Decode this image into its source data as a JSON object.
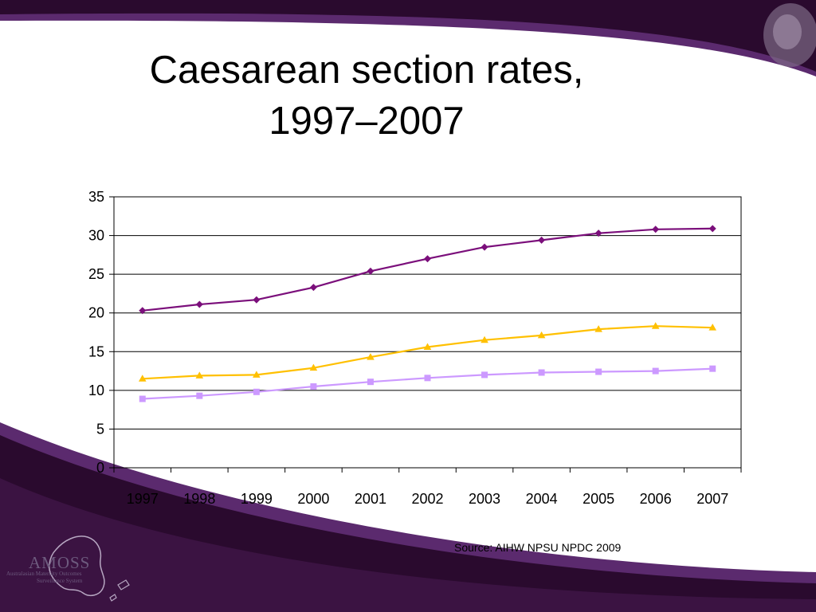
{
  "slide": {
    "title_line1": "Caesarean section rates,",
    "title_line2": "1997–2007",
    "source": "Source: AIHW NPSU NPDC 2009",
    "logo": {
      "name": "AMOSS",
      "subtitle_line1": "Australasian Maternity Outcomes",
      "subtitle_line2": "Surveillance System"
    },
    "colors": {
      "deco_dark": "#2a0a2e",
      "deco_purple": "#5b2a6e",
      "deco_light": "#c9b6d3"
    }
  },
  "chart_data": {
    "type": "line",
    "categories": [
      "1997",
      "1998",
      "1999",
      "2000",
      "2001",
      "2002",
      "2003",
      "2004",
      "2005",
      "2006",
      "2007"
    ],
    "ylim": [
      0,
      35
    ],
    "yticks": [
      0,
      5,
      10,
      15,
      20,
      25,
      30,
      35
    ],
    "grid": true,
    "legend": "none",
    "series": [
      {
        "values": [
          20.3,
          21.1,
          21.7,
          23.3,
          25.4,
          27.0,
          28.5,
          29.4,
          30.3,
          30.8,
          30.9
        ],
        "color": "#7b0f7b",
        "marker": "diamond"
      },
      {
        "values": [
          11.5,
          11.9,
          12.0,
          12.9,
          14.3,
          15.6,
          16.5,
          17.1,
          17.9,
          18.3,
          18.1
        ],
        "color": "#ffc000",
        "marker": "triangle"
      },
      {
        "values": [
          8.9,
          9.3,
          9.8,
          10.5,
          11.1,
          11.6,
          12.0,
          12.3,
          12.4,
          12.5,
          12.8
        ],
        "color": "#cc99ff",
        "marker": "square"
      }
    ]
  }
}
